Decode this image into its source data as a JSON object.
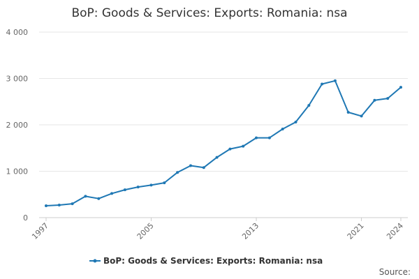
{
  "chart_data": {
    "type": "line",
    "title": "BoP: Goods & Services: Exports: Romania: nsa",
    "xlabel": "",
    "ylabel": "",
    "x": [
      1997,
      1998,
      1999,
      2000,
      2001,
      2002,
      2003,
      2004,
      2005,
      2006,
      2007,
      2008,
      2009,
      2010,
      2011,
      2012,
      2013,
      2014,
      2015,
      2016,
      2017,
      2018,
      2019,
      2020,
      2021,
      2022,
      2023,
      2024
    ],
    "series": [
      {
        "name": "BoP: Goods & Services: Exports: Romania: nsa",
        "color": "#1f78b4",
        "values": [
          255,
          270,
          300,
          460,
          410,
          520,
          600,
          660,
          700,
          750,
          975,
          1120,
          1080,
          1300,
          1480,
          1540,
          1720,
          1720,
          1910,
          2060,
          2420,
          2880,
          2950,
          2270,
          2190,
          2530,
          2570,
          2810
        ]
      }
    ],
    "xlim": [
      1997,
      2024
    ],
    "ylim": [
      0,
      4000
    ],
    "y_ticks": [
      "0",
      "1 000",
      "2 000",
      "3 000",
      "4 000"
    ],
    "x_ticks": [
      "1997",
      "2005",
      "2013",
      "2021",
      "2024"
    ],
    "grid": true,
    "legend": "bottom-center",
    "source_label": "Source:"
  }
}
